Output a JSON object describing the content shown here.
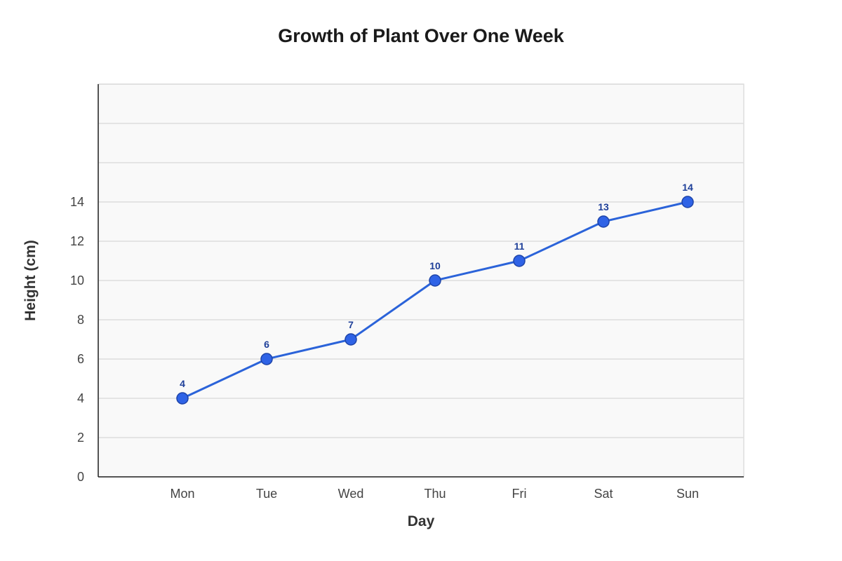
{
  "chart_data": {
    "type": "line",
    "title": "Growth of Plant Over One Week",
    "xlabel": "Day",
    "ylabel": "Height (cm)",
    "categories": [
      "Mon",
      "Tue",
      "Wed",
      "Thu",
      "Fri",
      "Sat",
      "Sun"
    ],
    "series": [
      {
        "values": [
          4,
          6,
          7,
          10,
          11,
          13,
          14
        ]
      }
    ],
    "ylim": [
      0,
      20
    ],
    "yticks": [
      0,
      2,
      4,
      6,
      8,
      10,
      12,
      14
    ],
    "grid": true,
    "legend": "none",
    "colors": {
      "line": "#2b63d9",
      "marker_fill": "#2f63e6",
      "marker_stroke": "#1e44a8",
      "data_label": "#1e3f99",
      "plot_background": "#f9f9f9",
      "grid": "#dddddd",
      "axis": "#222222"
    }
  }
}
